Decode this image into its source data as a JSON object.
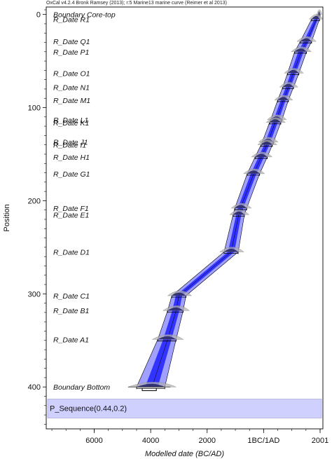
{
  "header": "OxCal v4.2.4 Bronk Ramsey (2013); r:5 Marine13 marine curve (Reimer et al 2013)",
  "chart_data": {
    "type": "oxcal-multiplot",
    "xlabel": "Modelled date (BC/AD)",
    "ylabel": "Position",
    "x_ticks": [
      {
        "value": -6000,
        "label": "6000"
      },
      {
        "value": -4000,
        "label": "4000"
      },
      {
        "value": -2000,
        "label": "2000"
      },
      {
        "value": 0,
        "label": "1BC/1AD"
      },
      {
        "value": 2001,
        "label": "2001"
      }
    ],
    "y_ticks": [
      0,
      100,
      200,
      300,
      400
    ],
    "xlim": [
      -7700,
      2100
    ],
    "ylim": [
      -8,
      445
    ],
    "sequence_label": "P_Sequence(0.44,0.2)",
    "colors": {
      "envelope_outer": "#8080ff",
      "envelope_inner": "#2020ff",
      "panel": "#d0d0ff",
      "frame": "#000000",
      "prior": "#b0b0b0"
    },
    "samples": [
      {
        "name": "Boundary Core-top",
        "depth": 0,
        "median": 1970,
        "low": 1930,
        "high": 2000
      },
      {
        "name": "R_Date R1",
        "depth": 5,
        "median": 1880,
        "low": 1700,
        "high": 1980
      },
      {
        "name": "R_Date Q1",
        "depth": 29,
        "median": 1520,
        "low": 1300,
        "high": 1700
      },
      {
        "name": "R_Date P1",
        "depth": 40,
        "median": 1330,
        "low": 1100,
        "high": 1520
      },
      {
        "name": "R_Date O1",
        "depth": 63,
        "median": 1050,
        "low": 850,
        "high": 1250
      },
      {
        "name": "R_Date N1",
        "depth": 78,
        "median": 880,
        "low": 680,
        "high": 1060
      },
      {
        "name": "R_Date M1",
        "depth": 92,
        "median": 700,
        "low": 500,
        "high": 880
      },
      {
        "name": "R_Date L1",
        "depth": 113,
        "median": 450,
        "low": 250,
        "high": 650
      },
      {
        "name": "R_Date K1",
        "depth": 116,
        "median": 410,
        "low": 210,
        "high": 610
      },
      {
        "name": "R_Date J1",
        "depth": 137,
        "median": 150,
        "low": -50,
        "high": 350
      },
      {
        "name": "R_Date I1",
        "depth": 140,
        "median": 110,
        "low": -90,
        "high": 310
      },
      {
        "name": "R_Date H1",
        "depth": 153,
        "median": -80,
        "low": -300,
        "high": 130
      },
      {
        "name": "R_Date G1",
        "depth": 171,
        "median": -350,
        "low": -580,
        "high": -140
      },
      {
        "name": "R_Date F1",
        "depth": 208,
        "median": -820,
        "low": -1020,
        "high": -600
      },
      {
        "name": "R_Date E1",
        "depth": 215,
        "median": -880,
        "low": -1080,
        "high": -680
      },
      {
        "name": "R_Date D1",
        "depth": 255,
        "median": -1150,
        "low": -1400,
        "high": -900
      },
      {
        "name": "R_Date C1",
        "depth": 302,
        "median": -3000,
        "low": -3250,
        "high": -2750
      },
      {
        "name": "R_Date B1",
        "depth": 318,
        "median": -3100,
        "low": -3400,
        "high": -2850
      },
      {
        "name": "R_Date A1",
        "depth": 349,
        "median": -3400,
        "low": -3750,
        "high": -3100
      },
      {
        "name": "Boundary Bottom",
        "depth": 400,
        "median": -3950,
        "low": -4500,
        "high": -3500
      }
    ],
    "bottom_bracket": {
      "depth": 404,
      "low": -4300,
      "high": -3800
    }
  }
}
